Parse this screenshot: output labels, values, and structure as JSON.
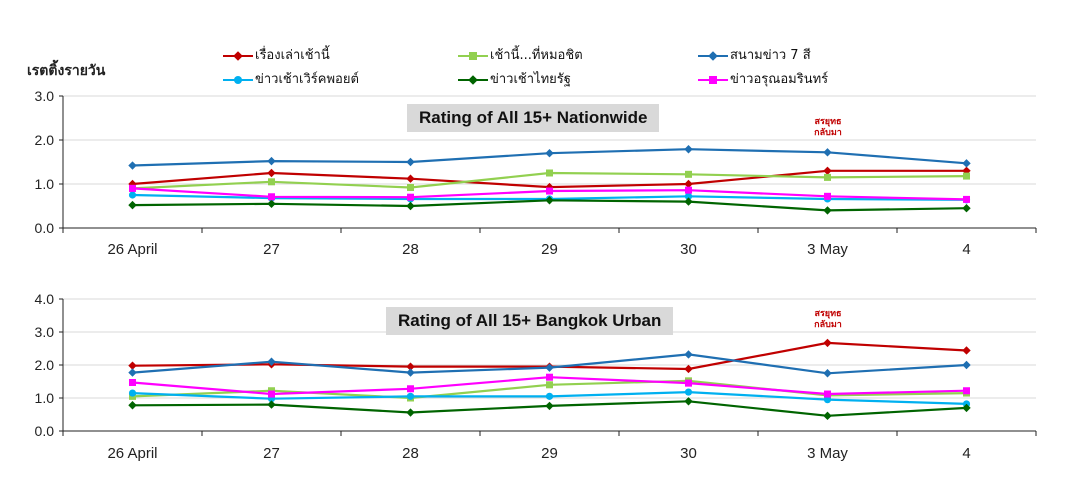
{
  "y_axis_label": "เรตติ้งรายวัน",
  "legend": [
    {
      "label": "เรื่องเล่าเช้านี้",
      "color": "#c00000",
      "marker": "diamond"
    },
    {
      "label": "เช้านี้...ที่หมอชิต",
      "color": "#92d050",
      "marker": "square"
    },
    {
      "label": "สนามข่าว   7   สี",
      "color": "#1f6fb2",
      "marker": "diamond"
    },
    {
      "label": "ข่าวเช้าเวิร์คพอยต์",
      "color": "#00b0f0",
      "marker": "circle"
    },
    {
      "label": "ข่าวเช้าไทยรัฐ",
      "color": "#006400",
      "marker": "diamond"
    },
    {
      "label": "ข่าวอรุณอมรินทร์",
      "color": "#ff00ff",
      "marker": "square"
    }
  ],
  "chart_data": [
    {
      "type": "line",
      "title": "Rating of All 15+ Nationwide",
      "categories": [
        "26 April",
        "27",
        "28",
        "29",
        "30",
        "3 May",
        "4"
      ],
      "ylim": [
        0,
        3
      ],
      "yticks": [
        "0.0",
        "1.0",
        "2.0",
        "3.0"
      ],
      "grid": true,
      "annotation": {
        "text": "สรยุทธ\nกลับมา",
        "category": "3 May"
      },
      "series": [
        {
          "name": "เรื่องเล่าเช้านี้",
          "values": [
            1.0,
            1.25,
            1.12,
            0.93,
            1.0,
            1.3,
            1.3
          ]
        },
        {
          "name": "เช้านี้...ที่หมอชิต",
          "values": [
            0.9,
            1.05,
            0.92,
            1.25,
            1.22,
            1.15,
            1.18
          ]
        },
        {
          "name": "สนามข่าว   7   สี",
          "values": [
            1.42,
            1.52,
            1.5,
            1.7,
            1.79,
            1.72,
            1.47
          ]
        },
        {
          "name": "ข่าวเช้าเวิร์คพอยต์",
          "values": [
            0.75,
            0.68,
            0.66,
            0.66,
            0.72,
            0.66,
            0.64
          ]
        },
        {
          "name": "ข่าวเช้าไทยรัฐ",
          "values": [
            0.52,
            0.55,
            0.5,
            0.63,
            0.6,
            0.4,
            0.45
          ]
        },
        {
          "name": "ข่าวอรุณอมรินทร์",
          "values": [
            0.9,
            0.71,
            0.7,
            0.84,
            0.86,
            0.72,
            0.65
          ]
        }
      ]
    },
    {
      "type": "line",
      "title": "Rating of All 15+ Bangkok Urban",
      "categories": [
        "26 April",
        "27",
        "28",
        "29",
        "30",
        "3 May",
        "4"
      ],
      "ylim": [
        0,
        4
      ],
      "yticks": [
        "0.0",
        "1.0",
        "2.0",
        "3.0",
        "4.0"
      ],
      "grid": true,
      "annotation": {
        "text": "สรยุทธ\nกลับมา",
        "category": "3 May"
      },
      "series": [
        {
          "name": "เรื่องเล่าเช้านี้",
          "values": [
            1.98,
            2.02,
            1.95,
            1.95,
            1.88,
            2.67,
            2.44
          ]
        },
        {
          "name": "เช้านี้...ที่หมอชิต",
          "values": [
            1.05,
            1.22,
            1.0,
            1.4,
            1.52,
            1.08,
            1.15
          ]
        },
        {
          "name": "สนามข่าว   7   สี",
          "values": [
            1.77,
            2.1,
            1.77,
            1.92,
            2.32,
            1.75,
            2.0
          ]
        },
        {
          "name": "ข่าวเช้าเวิร์คพอยต์",
          "values": [
            1.15,
            0.98,
            1.05,
            1.05,
            1.18,
            0.95,
            0.82
          ]
        },
        {
          "name": "ข่าวเช้าไทยรัฐ",
          "values": [
            0.78,
            0.8,
            0.56,
            0.76,
            0.9,
            0.46,
            0.7
          ]
        },
        {
          "name": "ข่าวอรุณอมรินทร์",
          "values": [
            1.47,
            1.12,
            1.28,
            1.63,
            1.45,
            1.12,
            1.22
          ]
        }
      ]
    }
  ]
}
